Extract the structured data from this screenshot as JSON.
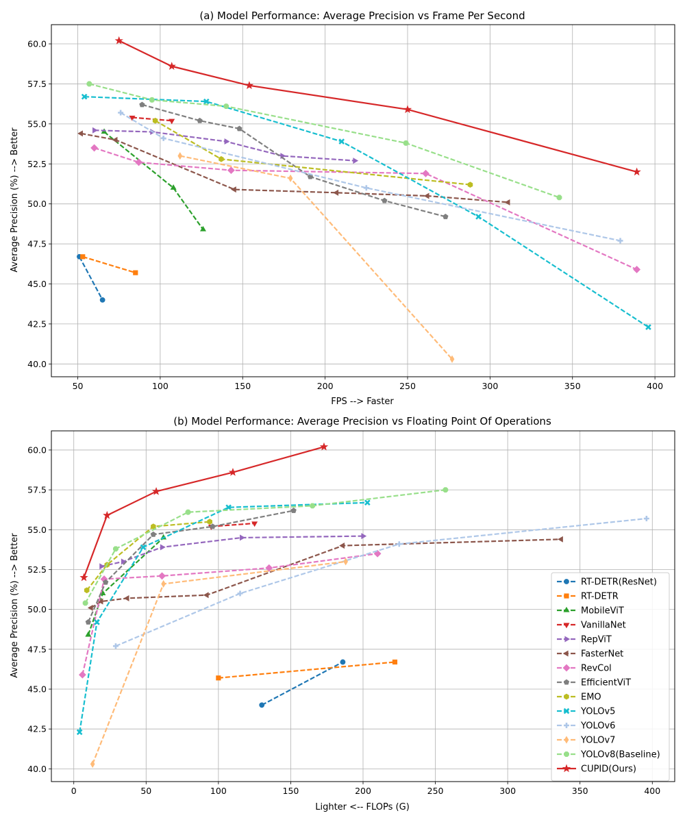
{
  "chart_data": [
    {
      "type": "line",
      "title": "(a) Model Performance: Average Precision vs Frame Per Second",
      "xlabel": "FPS --> Faster",
      "ylabel": "Average Precision (%) --> Better",
      "xlim": [
        34,
        412
      ],
      "ylim": [
        39.2,
        61.2
      ],
      "xticks": [
        50,
        100,
        150,
        200,
        250,
        300,
        350,
        400
      ],
      "yticks": [
        40.0,
        42.5,
        45.0,
        47.5,
        50.0,
        52.5,
        55.0,
        57.5,
        60.0
      ],
      "grid": true,
      "series": [
        {
          "name": "RT-DETR(ResNet)",
          "points": [
            [
              51,
              46.7
            ],
            [
              65,
              44.0
            ]
          ]
        },
        {
          "name": "RT-DETR",
          "points": [
            [
              53,
              46.7
            ],
            [
              85,
              45.7
            ]
          ]
        },
        {
          "name": "MobileViT",
          "points": [
            [
              66,
              54.5
            ],
            [
              108,
              51.0
            ],
            [
              126,
              48.4
            ]
          ]
        },
        {
          "name": "VanillaNet",
          "points": [
            [
              83,
              55.4
            ],
            [
              107,
              55.2
            ]
          ]
        },
        {
          "name": "RepViT",
          "points": [
            [
              60,
              54.6
            ],
            [
              95,
              54.5
            ],
            [
              140,
              53.9
            ],
            [
              174,
              53.0
            ],
            [
              218,
              52.7
            ]
          ]
        },
        {
          "name": "FasterNet",
          "points": [
            [
              52,
              54.4
            ],
            [
              73,
              54.0
            ],
            [
              145,
              50.9
            ],
            [
              207,
              50.7
            ],
            [
              262,
              50.5
            ],
            [
              311,
              50.1
            ]
          ]
        },
        {
          "name": "RevCol",
          "points": [
            [
              60,
              53.5
            ],
            [
              87,
              52.6
            ],
            [
              143,
              52.1
            ],
            [
              261,
              51.9
            ],
            [
              389,
              45.9
            ]
          ]
        },
        {
          "name": "EfficientViT",
          "points": [
            [
              89,
              56.2
            ],
            [
              124,
              55.2
            ],
            [
              148,
              54.7
            ],
            [
              191,
              51.7
            ],
            [
              236,
              50.2
            ],
            [
              273,
              49.2
            ]
          ]
        },
        {
          "name": "EMO",
          "points": [
            [
              97,
              55.2
            ],
            [
              137,
              52.8
            ],
            [
              288,
              51.2
            ]
          ]
        },
        {
          "name": "YOLOv5",
          "points": [
            [
              54,
              56.7
            ],
            [
              128,
              56.4
            ],
            [
              210,
              53.9
            ],
            [
              293,
              49.2
            ],
            [
              396,
              42.3
            ]
          ]
        },
        {
          "name": "YOLOv6",
          "points": [
            [
              76,
              55.7
            ],
            [
              102,
              54.1
            ],
            [
              225,
              51.0
            ],
            [
              379,
              47.7
            ]
          ]
        },
        {
          "name": "YOLOv7",
          "points": [
            [
              112,
              53.0
            ],
            [
              179,
              51.6
            ],
            [
              277,
              40.3
            ]
          ]
        },
        {
          "name": "YOLOv8(Baseline)",
          "points": [
            [
              57,
              57.5
            ],
            [
              95,
              56.5
            ],
            [
              140,
              56.1
            ],
            [
              249,
              53.8
            ],
            [
              342,
              50.4
            ]
          ]
        },
        {
          "name": "CUPID(Ours)",
          "points": [
            [
              75,
              60.2
            ],
            [
              107,
              58.6
            ],
            [
              154,
              57.4
            ],
            [
              250,
              55.9
            ],
            [
              389,
              52.0
            ]
          ]
        }
      ]
    },
    {
      "type": "line",
      "title": "(b) Model Performance: Average Precision vs Floating Point Of Operations",
      "xlabel": "Lighter <-- FLOPs (G)",
      "ylabel": "Average Precision (%) --> Better",
      "xlim": [
        -15.5,
        415.5
      ],
      "ylim": [
        39.2,
        61.2
      ],
      "xticks": [
        0,
        50,
        100,
        150,
        200,
        250,
        300,
        350,
        400
      ],
      "yticks": [
        40.0,
        42.5,
        45.0,
        47.5,
        50.0,
        52.5,
        55.0,
        57.5,
        60.0
      ],
      "grid": true,
      "legend_position": "lower-right",
      "series": [
        {
          "name": "RT-DETR(ResNet)",
          "points": [
            [
              130,
              44.0
            ],
            [
              186,
              46.7
            ]
          ]
        },
        {
          "name": "RT-DETR",
          "points": [
            [
              100,
              45.7
            ],
            [
              222,
              46.7
            ]
          ]
        },
        {
          "name": "MobileViT",
          "points": [
            [
              10,
              48.4
            ],
            [
              20,
              51.0
            ],
            [
              62,
              54.5
            ]
          ]
        },
        {
          "name": "VanillaNet",
          "points": [
            [
              95,
              55.2
            ],
            [
              125,
              55.4
            ]
          ]
        },
        {
          "name": "RepViT",
          "points": [
            [
              19,
              52.7
            ],
            [
              34,
              53.0
            ],
            [
              61,
              53.9
            ],
            [
              116,
              54.5
            ],
            [
              200,
              54.6
            ]
          ]
        },
        {
          "name": "FasterNet",
          "points": [
            [
              12,
              50.1
            ],
            [
              19,
              50.5
            ],
            [
              37,
              50.7
            ],
            [
              92,
              50.9
            ],
            [
              186,
              54.0
            ],
            [
              337,
              54.4
            ]
          ]
        },
        {
          "name": "RevCol",
          "points": [
            [
              6,
              45.9
            ],
            [
              21,
              51.9
            ],
            [
              61,
              52.1
            ],
            [
              135,
              52.6
            ],
            [
              210,
              53.5
            ]
          ]
        },
        {
          "name": "EfficientViT",
          "points": [
            [
              10,
              49.2
            ],
            [
              22,
              51.7
            ],
            [
              55,
              54.7
            ],
            [
              96,
              55.2
            ],
            [
              152,
              56.2
            ]
          ]
        },
        {
          "name": "EMO",
          "points": [
            [
              9,
              51.2
            ],
            [
              23,
              52.8
            ],
            [
              55,
              55.2
            ],
            [
              94,
              55.5
            ]
          ]
        },
        {
          "name": "YOLOv5",
          "points": [
            [
              4,
              42.3
            ],
            [
              16,
              49.2
            ],
            [
              48,
              53.9
            ],
            [
              107,
              56.4
            ],
            [
              203,
              56.7
            ]
          ]
        },
        {
          "name": "YOLOv6",
          "points": [
            [
              29,
              47.7
            ],
            [
              115,
              51.0
            ],
            [
              225,
              54.1
            ],
            [
              396,
              55.7
            ]
          ]
        },
        {
          "name": "YOLOv7",
          "points": [
            [
              13,
              40.3
            ],
            [
              62,
              51.6
            ],
            [
              188,
              53.0
            ]
          ]
        },
        {
          "name": "YOLOv8(Baseline)",
          "points": [
            [
              8,
              50.4
            ],
            [
              29,
              53.8
            ],
            [
              79,
              56.1
            ],
            [
              165,
              56.5
            ],
            [
              257,
              57.5
            ]
          ]
        },
        {
          "name": "CUPID(Ours)",
          "points": [
            [
              7,
              52.0
            ],
            [
              23,
              55.9
            ],
            [
              57,
              57.4
            ],
            [
              110,
              58.6
            ],
            [
              173,
              60.2
            ]
          ]
        }
      ]
    }
  ],
  "styles": [
    {
      "name": "RT-DETR(ResNet)",
      "color": "#1f77b4",
      "marker": "circle",
      "dashed": true
    },
    {
      "name": "RT-DETR",
      "color": "#ff7f0e",
      "marker": "square",
      "dashed": true
    },
    {
      "name": "MobileViT",
      "color": "#2ca02c",
      "marker": "triangle-up",
      "dashed": true
    },
    {
      "name": "VanillaNet",
      "color": "#d62728",
      "marker": "triangle-down",
      "dashed": true
    },
    {
      "name": "RepViT",
      "color": "#9467bd",
      "marker": "triangle-right",
      "dashed": true
    },
    {
      "name": "FasterNet",
      "color": "#8c564b",
      "marker": "triangle-left",
      "dashed": true
    },
    {
      "name": "RevCol",
      "color": "#e377c2",
      "marker": "diamond",
      "dashed": true
    },
    {
      "name": "EfficientViT",
      "color": "#7f7f7f",
      "marker": "pentagon",
      "dashed": true
    },
    {
      "name": "EMO",
      "color": "#bcbd22",
      "marker": "hexagon",
      "dashed": true
    },
    {
      "name": "YOLOv5",
      "color": "#17becf",
      "marker": "x",
      "dashed": true
    },
    {
      "name": "YOLOv6",
      "color": "#aec7e8",
      "marker": "plus",
      "dashed": true
    },
    {
      "name": "YOLOv7",
      "color": "#ffbb78",
      "marker": "thin-diamond",
      "dashed": true
    },
    {
      "name": "YOLOv8(Baseline)",
      "color": "#98df8a",
      "marker": "octagon",
      "dashed": true
    },
    {
      "name": "CUPID(Ours)",
      "color": "#d62728",
      "marker": "star",
      "dashed": false
    }
  ]
}
